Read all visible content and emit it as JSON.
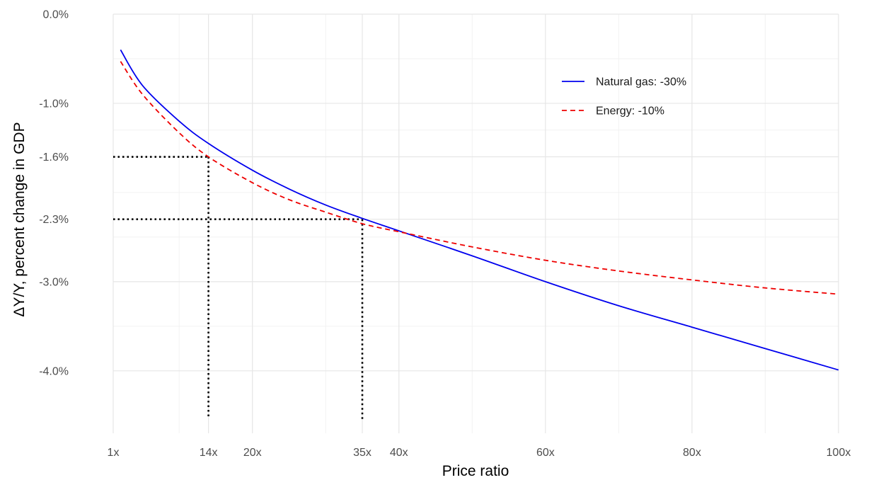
{
  "chart_data": {
    "type": "line",
    "xlabel": "Price ratio",
    "ylabel": "ΔY/Y, percent change in GDP",
    "xlim": [
      1,
      100
    ],
    "ylim": [
      -4.7,
      0.0
    ],
    "x_ticks": [
      {
        "value": 1,
        "label": "1x"
      },
      {
        "value": 14,
        "label": "14x"
      },
      {
        "value": 20,
        "label": "20x"
      },
      {
        "value": 35,
        "label": "35x"
      },
      {
        "value": 40,
        "label": "40x"
      },
      {
        "value": 60,
        "label": "60x"
      },
      {
        "value": 80,
        "label": "80x"
      },
      {
        "value": 100,
        "label": "100x"
      }
    ],
    "x_grid_minor": [
      10,
      30,
      50,
      70,
      90
    ],
    "y_ticks": [
      {
        "value": 0.0,
        "label": "0.0%"
      },
      {
        "value": -1.0,
        "label": "-1.0%"
      },
      {
        "value": -1.6,
        "label": "-1.6%"
      },
      {
        "value": -2.3,
        "label": "-2.3%"
      },
      {
        "value": -3.0,
        "label": "-3.0%"
      },
      {
        "value": -4.0,
        "label": "-4.0%"
      }
    ],
    "y_grid_minor": [
      -0.5,
      -1.3,
      -2.0,
      -2.5,
      -3.5
    ],
    "grid": true,
    "legend_position": "top-right",
    "series": [
      {
        "name": "Natural gas: -30%",
        "color": "#0000ee",
        "dash": "solid",
        "x": [
          2,
          5,
          10,
          14,
          20,
          25,
          30,
          35,
          40,
          50,
          60,
          70,
          80,
          90,
          100
        ],
        "y": [
          -0.4,
          -0.8,
          -1.2,
          -1.45,
          -1.75,
          -1.96,
          -2.14,
          -2.29,
          -2.43,
          -2.71,
          -3.0,
          -3.27,
          -3.51,
          -3.75,
          -3.99
        ]
      },
      {
        "name": "Energy: -10%",
        "color": "#ee0000",
        "dash": "dashed",
        "x": [
          2,
          5,
          10,
          14,
          20,
          25,
          30,
          35,
          40,
          50,
          60,
          70,
          80,
          90,
          100
        ],
        "y": [
          -0.53,
          -0.9,
          -1.33,
          -1.6,
          -1.89,
          -2.08,
          -2.22,
          -2.35,
          -2.44,
          -2.61,
          -2.76,
          -2.88,
          -2.98,
          -3.07,
          -3.14
        ]
      }
    ],
    "annotations": [
      {
        "kind": "reference-lines",
        "x": 14,
        "y": -1.6
      },
      {
        "kind": "reference-lines",
        "x": 35,
        "y": -2.3
      }
    ]
  }
}
